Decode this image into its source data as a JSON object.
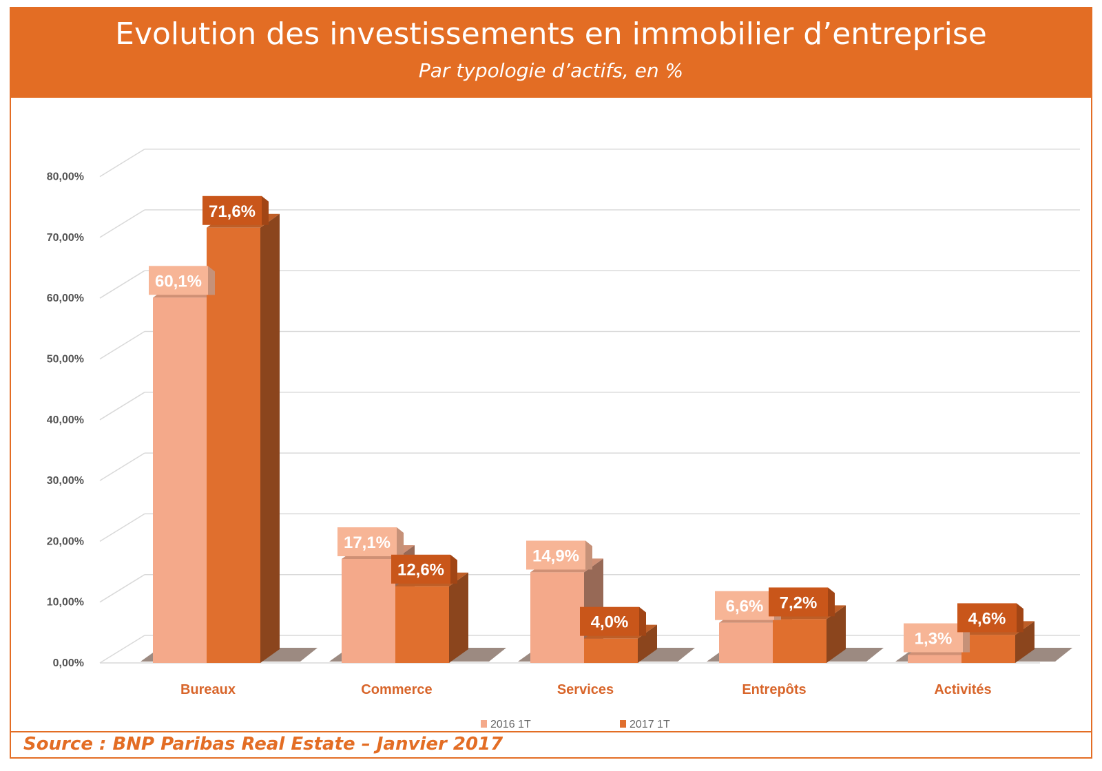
{
  "header": {
    "title": "Evolution des investissements en immobilier d’entreprise",
    "subtitle": "Par typologie d’actifs, en %"
  },
  "source": "Source : BNP Paribas Real Estate – Janvier 2017",
  "colors": {
    "accent": "#e36d24",
    "series_2016": "#f4a98a",
    "series_2017": "#e06f2e",
    "label_2016_bg": "#f7b596",
    "label_2017_bg": "#c9561a",
    "category_text": "#d8652a",
    "axis_text": "#555555",
    "grid": "#d9d9d9"
  },
  "chart_data": {
    "type": "bar",
    "categories": [
      "Bureaux",
      "Commerce",
      "Services",
      "Entrepôts",
      "Activités"
    ],
    "series": [
      {
        "name": "2016 1T",
        "values": [
          60.1,
          17.1,
          14.9,
          6.6,
          1.3
        ],
        "labels": [
          "60,1%",
          "17,1%",
          "14,9%",
          "6,6%",
          "1,3%"
        ]
      },
      {
        "name": "2017 1T",
        "values": [
          71.6,
          12.6,
          4.0,
          7.2,
          4.6
        ],
        "labels": [
          "71,6%",
          "12,6%",
          "4,0%",
          "7,2%",
          "4,6%"
        ]
      }
    ],
    "y_ticks": [
      "0,00%",
      "10,00%",
      "20,00%",
      "30,00%",
      "40,00%",
      "50,00%",
      "60,00%",
      "70,00%",
      "80,00%"
    ],
    "ylim": [
      0,
      80
    ],
    "grid": true,
    "legend_position": "bottom",
    "style": "3d-clustered-bar"
  }
}
